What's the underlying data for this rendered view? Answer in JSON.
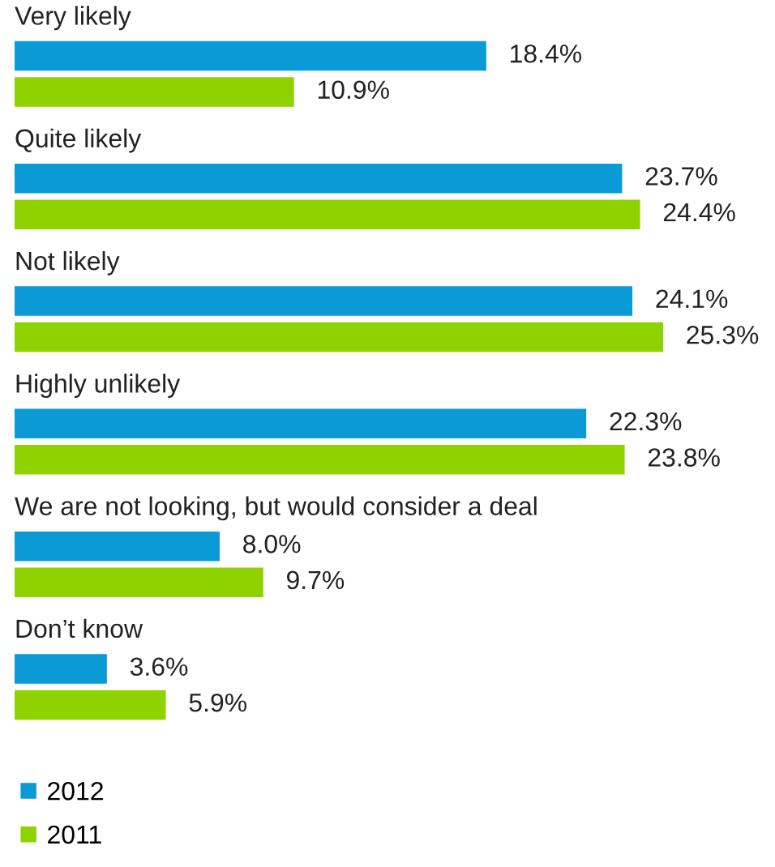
{
  "chart_data": {
    "type": "bar",
    "orientation": "horizontal",
    "categories": [
      "Very likely",
      "Quite likely",
      "Not likely",
      "Highly unlikely",
      "We are not looking, but would consider a deal",
      "Don’t know"
    ],
    "series": [
      {
        "name": "2012",
        "color": "#0a9ad6",
        "values": [
          18.4,
          23.7,
          24.1,
          22.3,
          8.0,
          3.6
        ],
        "value_labels": [
          "18.4%",
          "23.7%",
          "24.1%",
          "22.3%",
          "8.0%",
          "3.6%"
        ]
      },
      {
        "name": "2011",
        "color": "#8ed200",
        "values": [
          10.9,
          24.4,
          25.3,
          23.8,
          9.7,
          5.9
        ],
        "value_labels": [
          "10.9%",
          "24.4%",
          "25.3%",
          "23.8%",
          "9.7%",
          "5.9%"
        ]
      }
    ],
    "legend": "bottom left"
  }
}
